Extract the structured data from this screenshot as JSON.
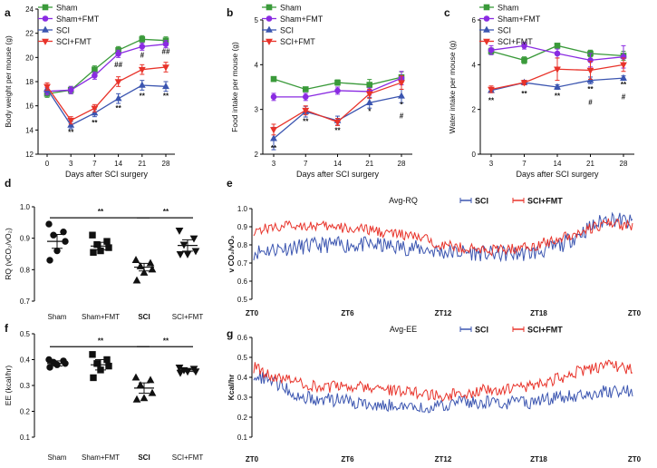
{
  "colors": {
    "Sham": "#3a9a3a",
    "Sham+FMT": "#8a2be2",
    "SCI": "#3b55b0",
    "SCI+FMT": "#e8332a"
  },
  "legend_labels": [
    "Sham",
    "Sham+FMT",
    "SCI",
    "SCI+FMT"
  ],
  "chart_data": [
    {
      "panel": "a",
      "type": "line",
      "ylabel": "Body weight per mouse (g)",
      "xlabel": "Days after SCI surgery",
      "x": [
        0,
        3,
        7,
        14,
        21,
        28
      ],
      "xticks": [
        "0",
        "3",
        "7",
        "14",
        "21",
        "28"
      ],
      "ylim": [
        12,
        24
      ],
      "yticks": [
        12,
        14,
        16,
        18,
        20,
        22,
        24
      ],
      "series": [
        {
          "name": "Sham",
          "values": [
            17.0,
            17.3,
            19.0,
            20.6,
            21.5,
            21.4
          ],
          "err": [
            0.3,
            0.3,
            0.3,
            0.3,
            0.3,
            0.3
          ],
          "marker": "square"
        },
        {
          "name": "Sham+FMT",
          "values": [
            17.2,
            17.3,
            18.5,
            20.3,
            20.9,
            21.1
          ],
          "err": [
            0.3,
            0.3,
            0.3,
            0.3,
            0.3,
            0.3
          ],
          "marker": "circle"
        },
        {
          "name": "SCI",
          "values": [
            17.4,
            14.4,
            15.4,
            16.6,
            17.7,
            17.6
          ],
          "err": [
            0.3,
            0.3,
            0.3,
            0.4,
            0.4,
            0.4
          ],
          "marker": "triangle-up"
        },
        {
          "name": "SCI+FMT",
          "values": [
            17.6,
            14.8,
            15.8,
            18.0,
            19.0,
            19.2
          ],
          "err": [
            0.3,
            0.3,
            0.3,
            0.4,
            0.4,
            0.4
          ],
          "marker": "triangle-down"
        }
      ],
      "annotations": [
        {
          "x": 3,
          "y": 13.6,
          "text": "**"
        },
        {
          "x": 7,
          "y": 14.4,
          "text": "**"
        },
        {
          "x": 14,
          "y": 19.2,
          "text": "##"
        },
        {
          "x": 14,
          "y": 15.6,
          "text": "**"
        },
        {
          "x": 21,
          "y": 20.0,
          "text": "#"
        },
        {
          "x": 21,
          "y": 16.6,
          "text": "**"
        },
        {
          "x": 28,
          "y": 20.3,
          "text": "##"
        },
        {
          "x": 28,
          "y": 16.6,
          "text": "**"
        }
      ]
    },
    {
      "panel": "b",
      "type": "line",
      "ylabel": "Food intake per mouse (g)",
      "xlabel": "Days after SCI surgery",
      "x": [
        3,
        7,
        14,
        21,
        28
      ],
      "xticks": [
        "3",
        "7",
        "14",
        "21",
        "28"
      ],
      "ylim": [
        2,
        5
      ],
      "yticks": [
        2,
        3,
        4,
        5
      ],
      "series": [
        {
          "name": "Sham",
          "values": [
            3.68,
            3.45,
            3.6,
            3.55,
            3.72
          ],
          "err": [
            0.05,
            0.05,
            0.06,
            0.12,
            0.12
          ],
          "marker": "square"
        },
        {
          "name": "Sham+FMT",
          "values": [
            3.28,
            3.28,
            3.42,
            3.4,
            3.7
          ],
          "err": [
            0.08,
            0.08,
            0.08,
            0.08,
            0.15
          ],
          "marker": "circle"
        },
        {
          "name": "SCI",
          "values": [
            2.35,
            2.95,
            2.75,
            3.15,
            3.3
          ],
          "err": [
            0.25,
            0.12,
            0.1,
            0.12,
            0.15
          ],
          "marker": "triangle-up"
        },
        {
          "name": "SCI+FMT",
          "values": [
            2.55,
            2.98,
            2.72,
            3.35,
            3.6
          ],
          "err": [
            0.12,
            0.1,
            0.08,
            0.1,
            0.15
          ],
          "marker": "triangle-down"
        }
      ],
      "annotations": [
        {
          "x": 3,
          "y": 2.08,
          "text": "**"
        },
        {
          "x": 7,
          "y": 2.68,
          "text": "**"
        },
        {
          "x": 14,
          "y": 2.48,
          "text": "**"
        },
        {
          "x": 21,
          "y": 2.9,
          "text": "*"
        },
        {
          "x": 28,
          "y": 3.05,
          "text": "*"
        },
        {
          "x": 28,
          "y": 2.8,
          "text": "#"
        }
      ]
    },
    {
      "panel": "c",
      "type": "line",
      "ylabel": "Water intake per mouse (g)",
      "xlabel": "Days after SCI surgery",
      "x": [
        3,
        7,
        14,
        21,
        28
      ],
      "xticks": [
        "3",
        "7",
        "14",
        "21",
        "28"
      ],
      "ylim": [
        0,
        6
      ],
      "yticks": [
        0,
        2,
        4,
        6
      ],
      "series": [
        {
          "name": "Sham",
          "values": [
            4.6,
            4.2,
            4.85,
            4.5,
            4.4
          ],
          "err": [
            0.15,
            0.15,
            0.1,
            0.15,
            0.2
          ],
          "marker": "square"
        },
        {
          "name": "Sham+FMT",
          "values": [
            4.65,
            4.85,
            4.5,
            4.2,
            4.35
          ],
          "err": [
            0.2,
            0.15,
            0.2,
            0.3,
            0.5
          ],
          "marker": "circle"
        },
        {
          "name": "SCI",
          "values": [
            2.85,
            3.2,
            3.0,
            3.3,
            3.4
          ],
          "err": [
            0.1,
            0.1,
            0.1,
            0.15,
            0.1
          ],
          "marker": "triangle-up"
        },
        {
          "name": "SCI+FMT",
          "values": [
            2.9,
            3.2,
            3.8,
            3.75,
            4.0
          ],
          "err": [
            0.15,
            0.1,
            0.5,
            0.4,
            0.3
          ],
          "marker": "triangle-down"
        }
      ],
      "annotations": [
        {
          "x": 3,
          "y": 2.3,
          "text": "**"
        },
        {
          "x": 7,
          "y": 2.6,
          "text": "**"
        },
        {
          "x": 14,
          "y": 2.5,
          "text": "**"
        },
        {
          "x": 21,
          "y": 2.8,
          "text": "**"
        },
        {
          "x": 21,
          "y": 2.2,
          "text": "#"
        },
        {
          "x": 28,
          "y": 3.0,
          "text": "**"
        },
        {
          "x": 28,
          "y": 2.45,
          "text": "#"
        }
      ]
    },
    {
      "panel": "d",
      "type": "scatter",
      "ylabel": "RQ (vCO₂/vO₂)",
      "categories": [
        "Sham",
        "Sham+FMT",
        "SCI",
        "SCI+FMT"
      ],
      "ylim": [
        0.7,
        1.0
      ],
      "yticks": [
        0.7,
        0.8,
        0.9,
        1.0
      ],
      "groups": [
        {
          "name": "Sham",
          "marker": "circle",
          "mean": 0.89,
          "sem": 0.022,
          "points": [
            0.945,
            0.92,
            0.91,
            0.89,
            0.86,
            0.83
          ]
        },
        {
          "name": "Sham+FMT",
          "marker": "square",
          "mean": 0.875,
          "sem": 0.012,
          "points": [
            0.91,
            0.89,
            0.88,
            0.87,
            0.86,
            0.855
          ]
        },
        {
          "name": "SCI",
          "marker": "triangle-up",
          "mean": 0.808,
          "sem": 0.012,
          "points": [
            0.83,
            0.82,
            0.81,
            0.8,
            0.79,
            0.765
          ]
        },
        {
          "name": "SCI+FMT",
          "marker": "triangle-down",
          "mean": 0.877,
          "sem": 0.018,
          "points": [
            0.925,
            0.9,
            0.88,
            0.86,
            0.85,
            0.85
          ]
        }
      ],
      "brackets": [
        {
          "from": 0,
          "to": 2,
          "y": 0.965,
          "text": "**"
        },
        {
          "from": 2,
          "to": 3,
          "y": 0.965,
          "text": "**"
        }
      ]
    },
    {
      "panel": "f",
      "type": "scatter",
      "ylabel": "EE (kcal/hr)",
      "categories": [
        "Sham",
        "Sham+FMT",
        "SCI",
        "SCI+FMT"
      ],
      "ylim": [
        0.1,
        0.5
      ],
      "yticks": [
        0.1,
        0.2,
        0.3,
        0.4,
        0.5
      ],
      "groups": [
        {
          "name": "Sham",
          "marker": "circle",
          "mean": 0.385,
          "sem": 0.01,
          "points": [
            0.4,
            0.395,
            0.39,
            0.385,
            0.38,
            0.37
          ]
        },
        {
          "name": "Sham+FMT",
          "marker": "square",
          "mean": 0.38,
          "sem": 0.02,
          "points": [
            0.42,
            0.4,
            0.385,
            0.375,
            0.36,
            0.33
          ]
        },
        {
          "name": "SCI",
          "marker": "triangle-up",
          "mean": 0.29,
          "sem": 0.02,
          "points": [
            0.33,
            0.32,
            0.3,
            0.27,
            0.25,
            0.245
          ]
        },
        {
          "name": "SCI+FMT",
          "marker": "triangle-down",
          "mean": 0.36,
          "sem": 0.006,
          "points": [
            0.37,
            0.365,
            0.36,
            0.355,
            0.355,
            0.35
          ]
        }
      ],
      "brackets": [
        {
          "from": 0,
          "to": 2,
          "y": 0.45,
          "text": "**"
        },
        {
          "from": 2,
          "to": 3,
          "y": 0.45,
          "text": "**"
        }
      ]
    },
    {
      "panel": "e",
      "type": "line",
      "title": "Avg-RQ",
      "ylabel": "v CO₂/vO₂",
      "xticks": [
        "ZT0",
        "ZT6",
        "ZT12",
        "ZT18",
        "ZT0"
      ],
      "ylim": [
        0.5,
        1.0
      ],
      "yticks": [
        0.5,
        0.6,
        0.7,
        0.8,
        0.9,
        1.0
      ],
      "series": [
        {
          "name": "SCI",
          "base": [
            0.76,
            0.78,
            0.79,
            0.8,
            0.8,
            0.8,
            0.79,
            0.78,
            0.76,
            0.76,
            0.75,
            0.75,
            0.76,
            0.8,
            0.88,
            0.95,
            0.92
          ],
          "noise": 0.045
        },
        {
          "name": "SCI+FMT",
          "base": [
            0.88,
            0.9,
            0.91,
            0.9,
            0.89,
            0.88,
            0.86,
            0.84,
            0.8,
            0.78,
            0.77,
            0.78,
            0.8,
            0.84,
            0.88,
            0.92,
            0.9
          ],
          "noise": 0.03
        }
      ]
    },
    {
      "panel": "g",
      "type": "line",
      "title": "Avg-EE",
      "ylabel": "Kcal/hr",
      "xticks": [
        "ZT0",
        "ZT6",
        "ZT12",
        "ZT18",
        "ZT0"
      ],
      "ylim": [
        0.1,
        0.6
      ],
      "yticks": [
        0.1,
        0.2,
        0.3,
        0.4,
        0.5,
        0.6
      ],
      "series": [
        {
          "name": "SCI",
          "base": [
            0.42,
            0.36,
            0.3,
            0.29,
            0.28,
            0.27,
            0.26,
            0.25,
            0.26,
            0.28,
            0.27,
            0.27,
            0.28,
            0.3,
            0.31,
            0.33,
            0.33
          ],
          "noise": 0.035
        },
        {
          "name": "SCI+FMT",
          "base": [
            0.45,
            0.4,
            0.37,
            0.35,
            0.36,
            0.35,
            0.33,
            0.32,
            0.31,
            0.32,
            0.34,
            0.34,
            0.36,
            0.4,
            0.44,
            0.46,
            0.44
          ],
          "noise": 0.03
        }
      ]
    }
  ]
}
